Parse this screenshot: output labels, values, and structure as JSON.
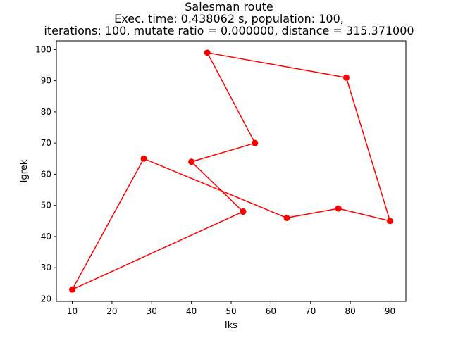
{
  "chart_data": {
    "type": "line",
    "title_lines": [
      "Salesman route",
      "Exec. time: 0.438062 s, population: 100,",
      "iterations: 100, mutate ratio = 0.000000, distance = 315.371000"
    ],
    "xlabel": "Iks",
    "ylabel": "Igrek",
    "xlim": [
      6,
      94
    ],
    "ylim": [
      19.2,
      102.8
    ],
    "xticks": [
      10,
      20,
      30,
      40,
      50,
      60,
      70,
      80,
      90
    ],
    "yticks": [
      20,
      30,
      40,
      50,
      60,
      70,
      80,
      90,
      100
    ],
    "grid": false,
    "series": [
      {
        "color": "#ff0000",
        "marker": "circle",
        "x": [
          53,
          10,
          28,
          64,
          77,
          90,
          79,
          44,
          56,
          40,
          53
        ],
        "y": [
          48,
          23,
          65,
          46,
          49,
          45,
          91,
          99,
          70,
          64,
          48
        ]
      }
    ]
  }
}
